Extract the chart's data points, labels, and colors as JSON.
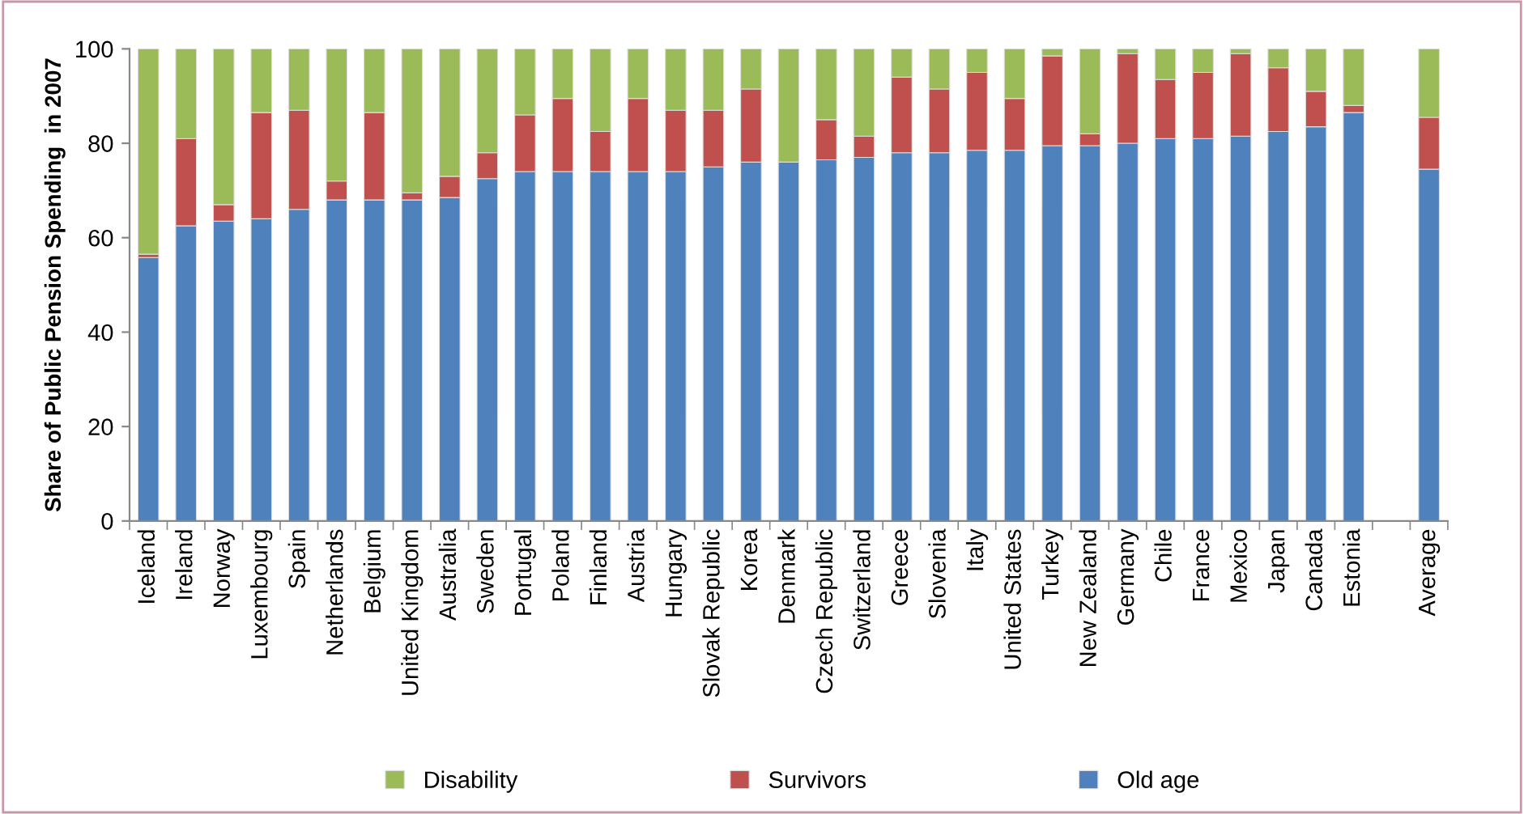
{
  "chart_data": {
    "type": "bar",
    "stacked": true,
    "ylabel": "Share of Public Pension Spending  in 2007",
    "categories": [
      "Iceland",
      "Ireland",
      "Norway",
      "Luxembourg",
      "Spain",
      "Netherlands",
      "Belgium",
      "United Kingdom",
      "Australia",
      "Sweden",
      "Portugal",
      "Poland",
      "Finland",
      "Austria",
      "Hungary",
      "Slovak Republic",
      "Korea",
      "Denmark",
      "Czech Republic",
      "Switzerland",
      "Greece",
      "Slovenia",
      "Italy",
      "United States",
      "Turkey",
      "New Zealand",
      "Germany",
      "Chile",
      "France",
      "Mexico",
      "Japan",
      "Canada",
      "Estonia",
      null,
      "Average"
    ],
    "series": [
      {
        "name": "Old age",
        "color": "#4f81bd",
        "values": [
          55.8,
          62.5,
          63.5,
          64,
          66,
          68,
          68,
          68,
          68.5,
          72.5,
          74,
          74,
          74,
          74,
          74,
          75,
          76,
          76,
          76.5,
          77,
          78,
          78,
          78.5,
          78.5,
          79.5,
          79.5,
          80,
          81,
          81,
          81.5,
          82.5,
          83.5,
          86.5,
          null,
          74.5
        ]
      },
      {
        "name": "Survivors",
        "color": "#c0504d",
        "values": [
          0.7,
          18.5,
          3.5,
          22.5,
          21,
          4,
          18.5,
          1.5,
          4.5,
          5.5,
          12,
          15.5,
          8.5,
          15.5,
          13,
          12,
          15.5,
          0,
          8.5,
          4.5,
          16,
          13.5,
          16.5,
          11,
          19,
          2.5,
          19,
          12.5,
          14,
          17.5,
          13.5,
          7.5,
          1.5,
          null,
          11
        ]
      },
      {
        "name": "Disability",
        "color": "#9bbb59",
        "values": [
          43.5,
          19,
          33,
          13.5,
          13,
          28,
          13.5,
          30.5,
          27,
          22,
          14,
          10.5,
          17.5,
          10.5,
          13,
          13,
          8.5,
          24,
          15,
          18.5,
          6,
          8.5,
          5,
          10.5,
          1.5,
          18,
          1,
          6.5,
          5,
          1,
          4,
          9,
          12,
          null,
          14.5
        ]
      }
    ],
    "ylim": [
      0,
      100
    ],
    "yticks": [
      0,
      20,
      40,
      60,
      80,
      100
    ],
    "grid": false,
    "legend": "bottom"
  }
}
